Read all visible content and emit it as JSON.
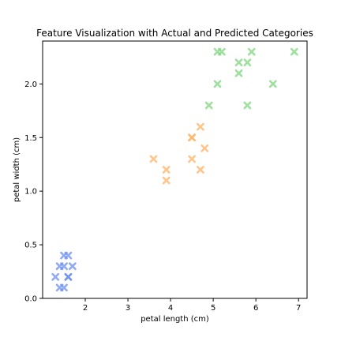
{
  "chart_data": {
    "type": "scatter",
    "title": "Feature Visualization with Actual and Predicted Categories",
    "xlabel": "petal length (cm)",
    "ylabel": "petal width (cm)",
    "xlim": [
      1.0,
      7.2
    ],
    "ylim": [
      0.0,
      2.4
    ],
    "xticks": [
      2,
      3,
      4,
      5,
      6,
      7
    ],
    "yticks": [
      0.0,
      0.5,
      1.0,
      1.5,
      2.0
    ],
    "grid": false,
    "marker": "x",
    "series": [
      {
        "color": "#6b8ef0",
        "points": [
          [
            1.5,
            0.4
          ],
          [
            1.6,
            0.4
          ],
          [
            1.4,
            0.3
          ],
          [
            1.5,
            0.3
          ],
          [
            1.7,
            0.3
          ],
          [
            1.3,
            0.2
          ],
          [
            1.6,
            0.2
          ],
          [
            1.6,
            0.2
          ],
          [
            1.4,
            0.1
          ],
          [
            1.5,
            0.1
          ]
        ]
      },
      {
        "color": "#ffb366",
        "points": [
          [
            4.7,
            1.6
          ],
          [
            4.5,
            1.5
          ],
          [
            4.5,
            1.5
          ],
          [
            4.8,
            1.4
          ],
          [
            3.6,
            1.3
          ],
          [
            4.5,
            1.3
          ],
          [
            3.9,
            1.2
          ],
          [
            4.7,
            1.2
          ],
          [
            3.9,
            1.1
          ]
        ]
      },
      {
        "color": "#7fd67f",
        "points": [
          [
            5.1,
            2.3
          ],
          [
            5.2,
            2.3
          ],
          [
            5.9,
            2.3
          ],
          [
            6.9,
            2.3
          ],
          [
            5.6,
            2.2
          ],
          [
            5.8,
            2.2
          ],
          [
            5.6,
            2.1
          ],
          [
            5.1,
            2.0
          ],
          [
            6.4,
            2.0
          ],
          [
            4.9,
            1.8
          ],
          [
            5.8,
            1.8
          ]
        ]
      }
    ]
  }
}
